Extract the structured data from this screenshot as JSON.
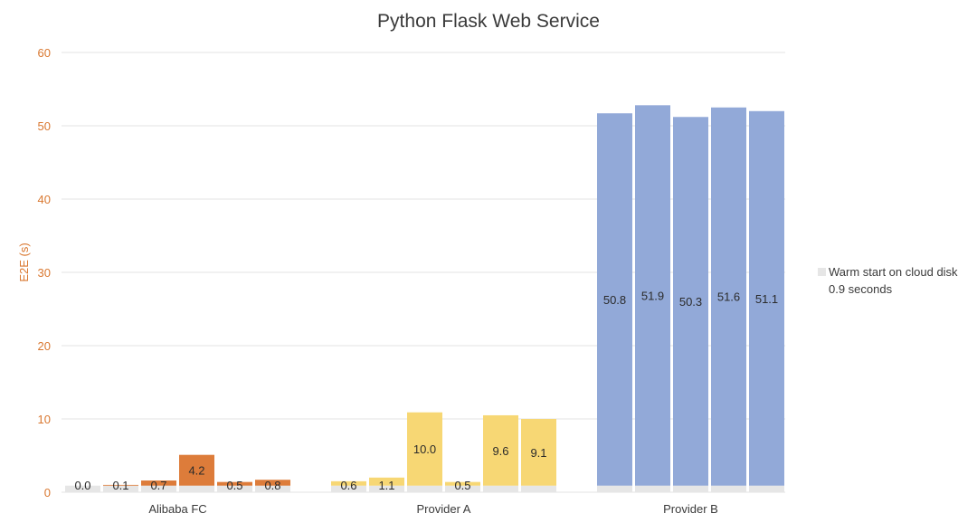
{
  "chart_data": {
    "type": "bar",
    "stacked": true,
    "title": "Python Flask Web Service",
    "xlabel": "",
    "ylabel": "E2E (s)",
    "ylim": [
      0,
      60
    ],
    "yticks": [
      0,
      10,
      20,
      30,
      40,
      50,
      60
    ],
    "grid": true,
    "legend": {
      "label_line1": "Warm start on cloud disk",
      "label_line2": "0.9 seconds",
      "position": "right"
    },
    "base_value": 0.9,
    "colors": {
      "base": "#e6e6e6",
      "Alibaba FC": "#dd7c3a",
      "Provider A": "#f7d774",
      "Provider B": "#92a9d8",
      "grid": "#e3e3e3"
    },
    "groups": [
      {
        "name": "Alibaba FC",
        "values": [
          0.0,
          0.1,
          0.7,
          4.2,
          0.5,
          0.8
        ],
        "labels": [
          "0.0",
          "0.1",
          "0.7",
          "4.2",
          "0.5",
          "0.8"
        ]
      },
      {
        "name": "Provider A",
        "values": [
          0.6,
          1.1,
          10.0,
          0.5,
          9.6,
          9.1
        ],
        "labels": [
          "0.6",
          "1.1",
          "10.0",
          "0.5",
          "9.6",
          "9.1"
        ]
      },
      {
        "name": "Provider B",
        "values": [
          50.8,
          51.9,
          50.3,
          51.6,
          51.1
        ],
        "labels": [
          "50.8",
          "51.9",
          "50.3",
          "51.6",
          "51.1"
        ]
      }
    ]
  }
}
